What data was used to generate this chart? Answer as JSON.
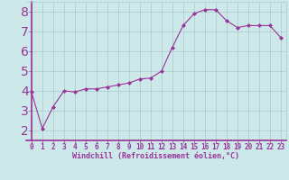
{
  "x": [
    0,
    1,
    2,
    3,
    4,
    5,
    6,
    7,
    8,
    9,
    10,
    11,
    12,
    13,
    14,
    15,
    16,
    17,
    18,
    19,
    20,
    21,
    22,
    23
  ],
  "y": [
    3.95,
    2.1,
    3.2,
    4.0,
    3.95,
    4.1,
    4.1,
    4.2,
    4.3,
    4.4,
    4.6,
    4.65,
    5.0,
    6.2,
    7.3,
    7.9,
    8.1,
    8.1,
    7.55,
    7.2,
    7.3,
    7.3,
    7.3,
    6.7
  ],
  "line_color": "#993399",
  "marker": "D",
  "marker_size": 2.0,
  "bg_color": "#cce8e8",
  "grid_color": "#aacccc",
  "axis_color": "#993399",
  "tick_color": "#993399",
  "xlabel": "Windchill (Refroidissement éolien,°C)",
  "xlim": [
    -0.5,
    23.5
  ],
  "ylim": [
    1.5,
    8.5
  ],
  "yticks": [
    2,
    3,
    4,
    5,
    6,
    7,
    8
  ],
  "xticks": [
    0,
    1,
    2,
    3,
    4,
    5,
    6,
    7,
    8,
    9,
    10,
    11,
    12,
    13,
    14,
    15,
    16,
    17,
    18,
    19,
    20,
    21,
    22,
    23
  ],
  "font_size_label": 6.0,
  "font_size_tick": 5.5
}
